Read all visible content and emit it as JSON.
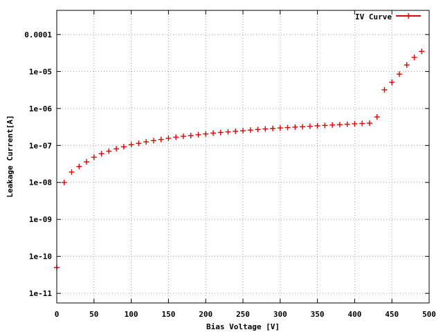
{
  "chart_data": {
    "type": "scatter",
    "title": "",
    "xlabel": "Bias Voltage [V]",
    "ylabel": "Leakage Current[A]",
    "xlim": [
      0,
      500
    ],
    "ylim": [
      5.5e-12,
      0.00045
    ],
    "y_scale": "log",
    "grid": true,
    "legend_position": "top-right",
    "x_ticks": [
      {
        "value": 0,
        "label": "0"
      },
      {
        "value": 50,
        "label": "50"
      },
      {
        "value": 100,
        "label": "100"
      },
      {
        "value": 150,
        "label": "150"
      },
      {
        "value": 200,
        "label": "200"
      },
      {
        "value": 250,
        "label": "250"
      },
      {
        "value": 300,
        "label": "300"
      },
      {
        "value": 350,
        "label": "350"
      },
      {
        "value": 400,
        "label": "400"
      },
      {
        "value": 450,
        "label": "450"
      },
      {
        "value": 500,
        "label": "500"
      }
    ],
    "y_ticks": [
      {
        "value": 1e-11,
        "label": "1e-11"
      },
      {
        "value": 1e-10,
        "label": "1e-10"
      },
      {
        "value": 1e-09,
        "label": "1e-09"
      },
      {
        "value": 1e-08,
        "label": "1e-08"
      },
      {
        "value": 1e-07,
        "label": "1e-07"
      },
      {
        "value": 1e-06,
        "label": "1e-06"
      },
      {
        "value": 1e-05,
        "label": "1e-05"
      },
      {
        "value": 0.0001,
        "label": "0.0001"
      }
    ],
    "series": [
      {
        "name": "IV Curve",
        "color": "#e00000",
        "marker": "plus",
        "x": [
          0,
          10,
          20,
          30,
          40,
          50,
          60,
          70,
          80,
          90,
          100,
          110,
          120,
          130,
          140,
          150,
          160,
          170,
          180,
          190,
          200,
          210,
          220,
          230,
          240,
          250,
          260,
          270,
          280,
          290,
          300,
          310,
          320,
          330,
          340,
          350,
          360,
          370,
          380,
          390,
          400,
          410,
          420,
          430,
          440,
          450,
          460,
          470,
          480,
          490
        ],
        "y": [
          5e-11,
          1e-08,
          1.9e-08,
          2.7e-08,
          3.6e-08,
          4.8e-08,
          6e-08,
          7e-08,
          8.1e-08,
          9.2e-08,
          1.05e-07,
          1.14e-07,
          1.25e-07,
          1.35e-07,
          1.45e-07,
          1.56e-07,
          1.67e-07,
          1.77e-07,
          1.85e-07,
          1.95e-07,
          2.05e-07,
          2.16e-07,
          2.25e-07,
          2.33e-07,
          2.42e-07,
          2.5e-07,
          2.6e-07,
          2.7e-07,
          2.8e-07,
          2.88e-07,
          2.97e-07,
          3.05e-07,
          3.13e-07,
          3.2e-07,
          3.3e-07,
          3.4e-07,
          3.48e-07,
          3.57e-07,
          3.66e-07,
          3.75e-07,
          3.85e-07,
          3.93e-07,
          4e-07,
          5.9e-07,
          3.2e-06,
          5.1e-06,
          8.5e-06,
          1.5e-05,
          2.4e-05,
          3.5e-05
        ]
      }
    ]
  }
}
